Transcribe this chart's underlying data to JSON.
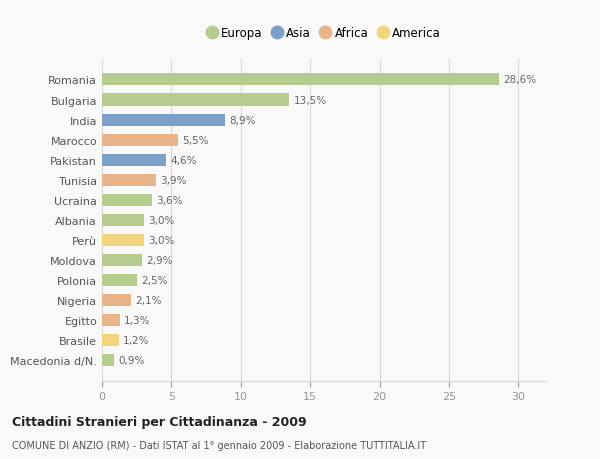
{
  "categories": [
    "Romania",
    "Bulgaria",
    "India",
    "Marocco",
    "Pakistan",
    "Tunisia",
    "Ucraina",
    "Albania",
    "Perù",
    "Moldova",
    "Polonia",
    "Nigeria",
    "Egitto",
    "Brasile",
    "Macedonia d/N."
  ],
  "values": [
    28.6,
    13.5,
    8.9,
    5.5,
    4.6,
    3.9,
    3.6,
    3.0,
    3.0,
    2.9,
    2.5,
    2.1,
    1.3,
    1.2,
    0.9
  ],
  "labels": [
    "28,6%",
    "13,5%",
    "8,9%",
    "5,5%",
    "4,6%",
    "3,9%",
    "3,6%",
    "3,0%",
    "3,0%",
    "2,9%",
    "2,5%",
    "2,1%",
    "1,3%",
    "1,2%",
    "0,9%"
  ],
  "continent": [
    "Europa",
    "Europa",
    "Asia",
    "Africa",
    "Asia",
    "Africa",
    "Europa",
    "Europa",
    "America",
    "Europa",
    "Europa",
    "Africa",
    "Africa",
    "America",
    "Europa"
  ],
  "colors": {
    "Europa": "#b5cc8e",
    "Asia": "#7b9fc7",
    "Africa": "#e8b48a",
    "America": "#f2d57e"
  },
  "xlim": [
    0,
    32
  ],
  "xticks": [
    0,
    5,
    10,
    15,
    20,
    25,
    30
  ],
  "title": "Cittadini Stranieri per Cittadinanza - 2009",
  "subtitle": "COMUNE DI ANZIO (RM) - Dati ISTAT al 1° gennaio 2009 - Elaborazione TUTTITALIA.IT",
  "background_color": "#f9f9f9",
  "grid_color": "#d8d8d8",
  "bar_height": 0.6,
  "legend_order": [
    "Europa",
    "Asia",
    "Africa",
    "America"
  ]
}
